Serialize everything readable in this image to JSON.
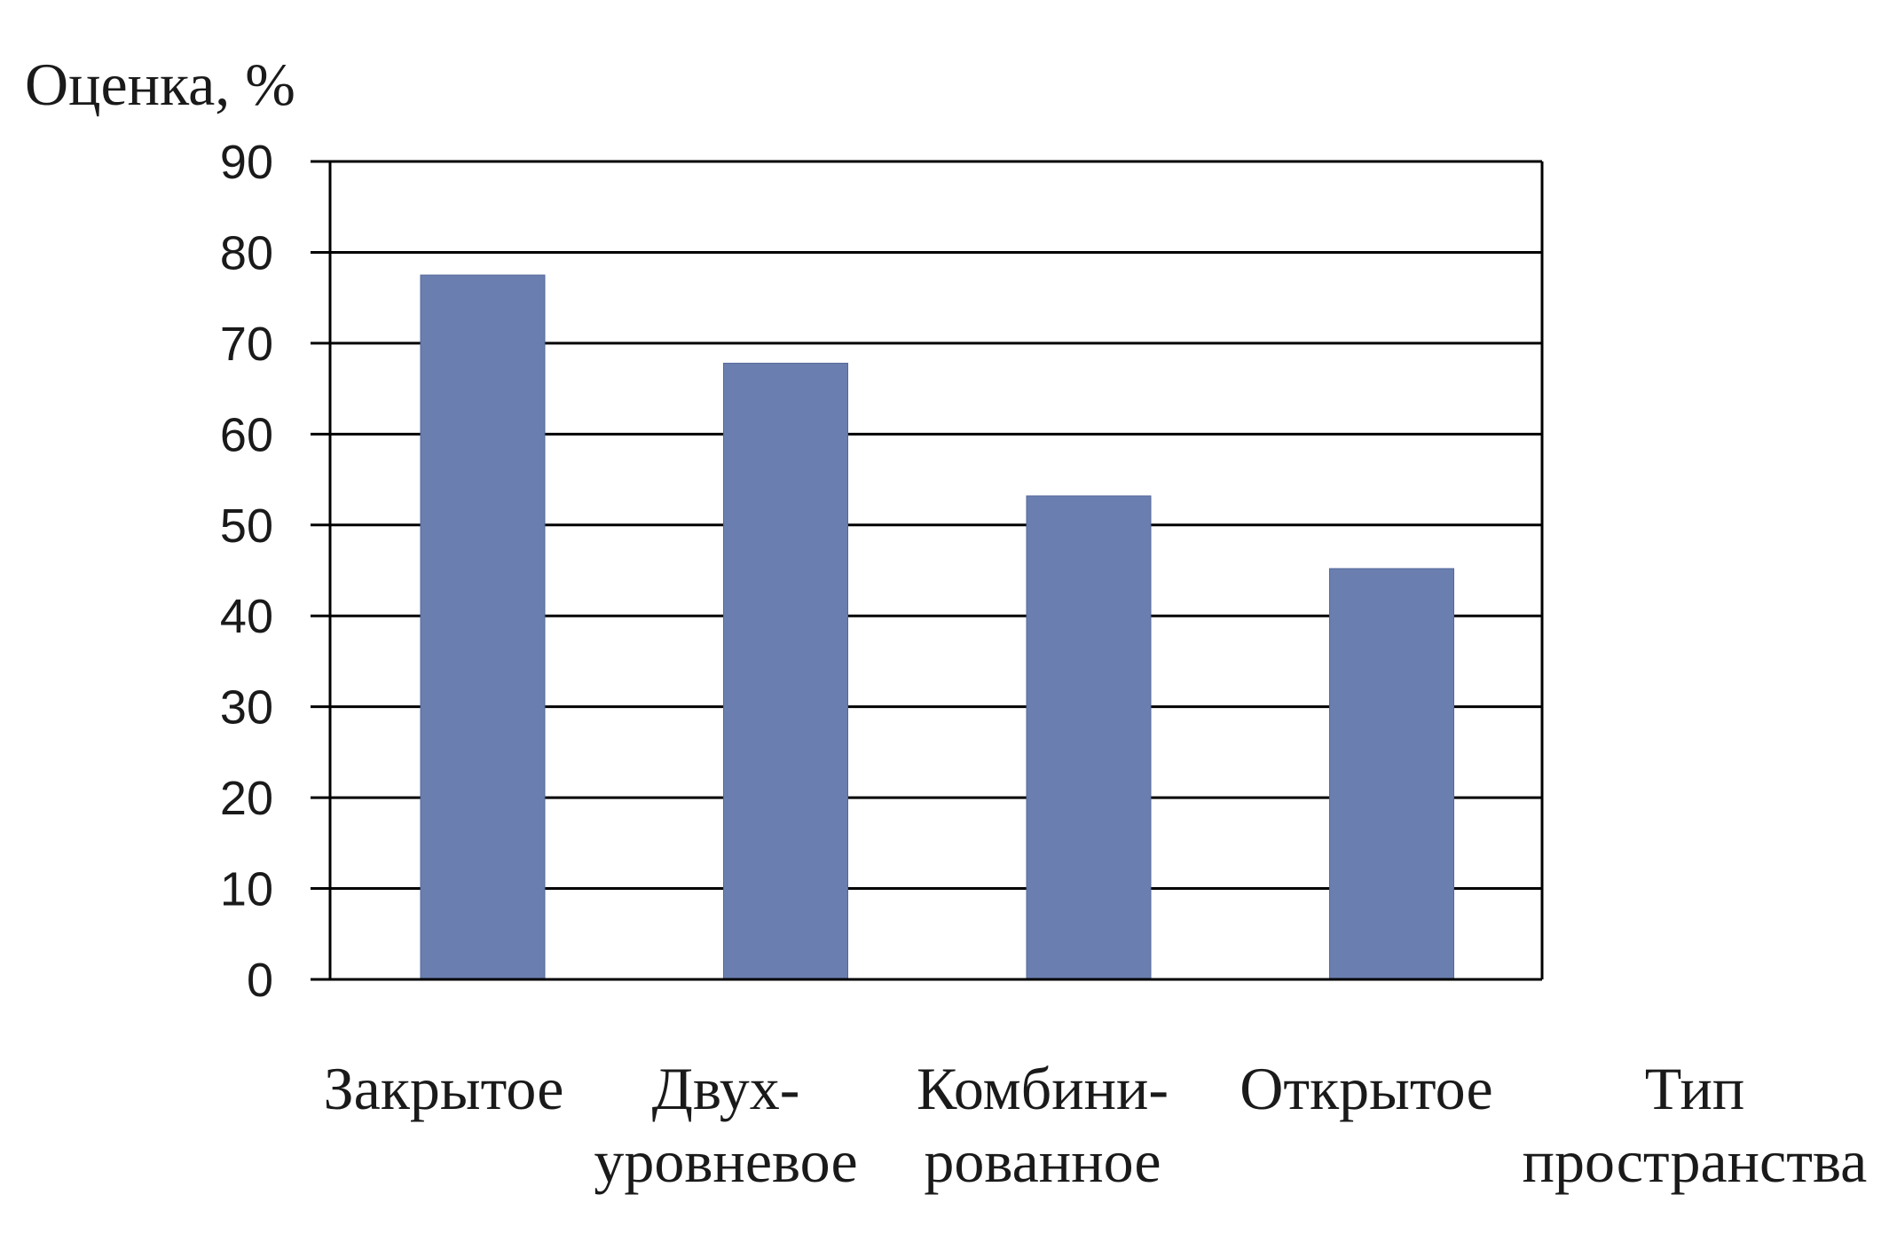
{
  "chart_data": {
    "type": "bar",
    "ylabel": "Оценка, %",
    "xlabel": [
      "Тип",
      "пространства"
    ],
    "categories": [
      [
        "Закрытое"
      ],
      [
        "Двух-",
        "уровневое"
      ],
      [
        "Комбини-",
        "рованное"
      ],
      [
        "Открытое"
      ]
    ],
    "values": [
      77.5,
      67.8,
      53.2,
      45.2
    ],
    "ylim": [
      0,
      90
    ],
    "yticks": [
      0,
      10,
      20,
      30,
      40,
      50,
      60,
      70,
      80,
      90
    ],
    "grid": true,
    "legend": "none",
    "bar_color": "#6a7faf"
  }
}
